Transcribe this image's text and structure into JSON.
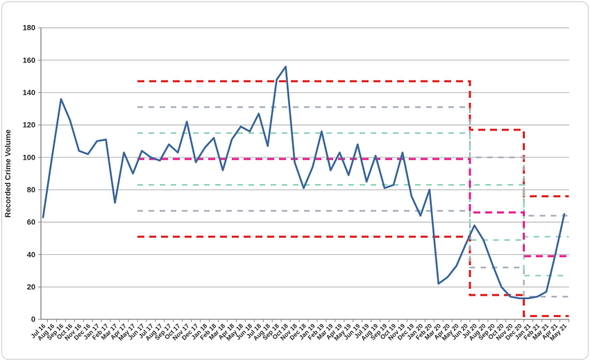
{
  "chart_data": {
    "type": "line",
    "title": "",
    "xlabel": "",
    "ylabel": "Recorded Crime Volume",
    "ylim": [
      0,
      180
    ],
    "ytick_interval": 20,
    "ytick_labels": [
      "0",
      "20",
      "40",
      "60",
      "80",
      "100",
      "120",
      "140",
      "160",
      "180"
    ],
    "grid": "horizontal",
    "legend": "none",
    "categories": [
      "Jul 16",
      "Aug 16",
      "Sep 16",
      "Oct 16",
      "Nov 16",
      "Dec 16",
      "Jan 17",
      "Feb 17",
      "Mar 17",
      "Apr 17",
      "May 17",
      "Jun 17",
      "Jul 17",
      "Aug 17",
      "Sep 17",
      "Oct 17",
      "Nov 17",
      "Dec 17",
      "Jan 18",
      "Feb 18",
      "Mar 18",
      "Apr 18",
      "May 18",
      "Jun 18",
      "Jul 18",
      "Aug 18",
      "Sep 18",
      "Oct 18",
      "Nov 18",
      "Dec 18",
      "Jan 19",
      "Feb 19",
      "Mar 19",
      "Apr 19",
      "May 19",
      "Jun 19",
      "Jul 19",
      "Aug 19",
      "Sep 19",
      "Oct 19",
      "Nov 19",
      "Dec 19",
      "Jan 20",
      "Feb 20",
      "Mar 20",
      "Apr 20",
      "May 20",
      "Jun 20",
      "Jul 20",
      "Aug 20",
      "Sep 20",
      "Oct 20",
      "Nov 20",
      "Dec 20",
      "Jan 21",
      "Feb 21",
      "Mar 21",
      "Apr 21",
      "May 21"
    ],
    "series": [
      {
        "name": "Recorded Crime Volume",
        "values": [
          63,
          100,
          136,
          123,
          104,
          102,
          110,
          111,
          72,
          103,
          90,
          104,
          100,
          98,
          108,
          103,
          122,
          97,
          106,
          112,
          92,
          111,
          119,
          116,
          127,
          107,
          148,
          156,
          97,
          81,
          94,
          116,
          92,
          103,
          89,
          108,
          85,
          101,
          81,
          83,
          103,
          76,
          64,
          80,
          22,
          26,
          33,
          46,
          58,
          49,
          34,
          20,
          14,
          13,
          13,
          14,
          17,
          40,
          65
        ]
      }
    ],
    "control_limits": {
      "phases": [
        {
          "label": "Jun 17 - Jun 20",
          "from_index": 11,
          "to_index": 47,
          "mean": 99,
          "sigma1": [
            83,
            115
          ],
          "sigma2": [
            67,
            131
          ],
          "sigma3": [
            51,
            147
          ]
        },
        {
          "label": "Jul 20 - Dec 20",
          "from_index": 48,
          "to_index": 53,
          "mean": 66,
          "sigma1": [
            49,
            83
          ],
          "sigma2": [
            32,
            100
          ],
          "sigma3": [
            15,
            117
          ]
        },
        {
          "label": "Jan 21 - May 21",
          "from_index": 54,
          "to_index": 58,
          "mean": 39,
          "sigma1": [
            27,
            51
          ],
          "sigma2": [
            14,
            64
          ],
          "sigma3": [
            2,
            76
          ]
        }
      ]
    },
    "colors": {
      "line": "#3a679c",
      "mean": "#ec168c",
      "sigma1": "#8fd4bc",
      "sigma2": "#a6adb9",
      "sigma3": "#e11818",
      "gridline": "#a6a6a6",
      "axis": "#808080",
      "tick_text": "#262626"
    }
  }
}
